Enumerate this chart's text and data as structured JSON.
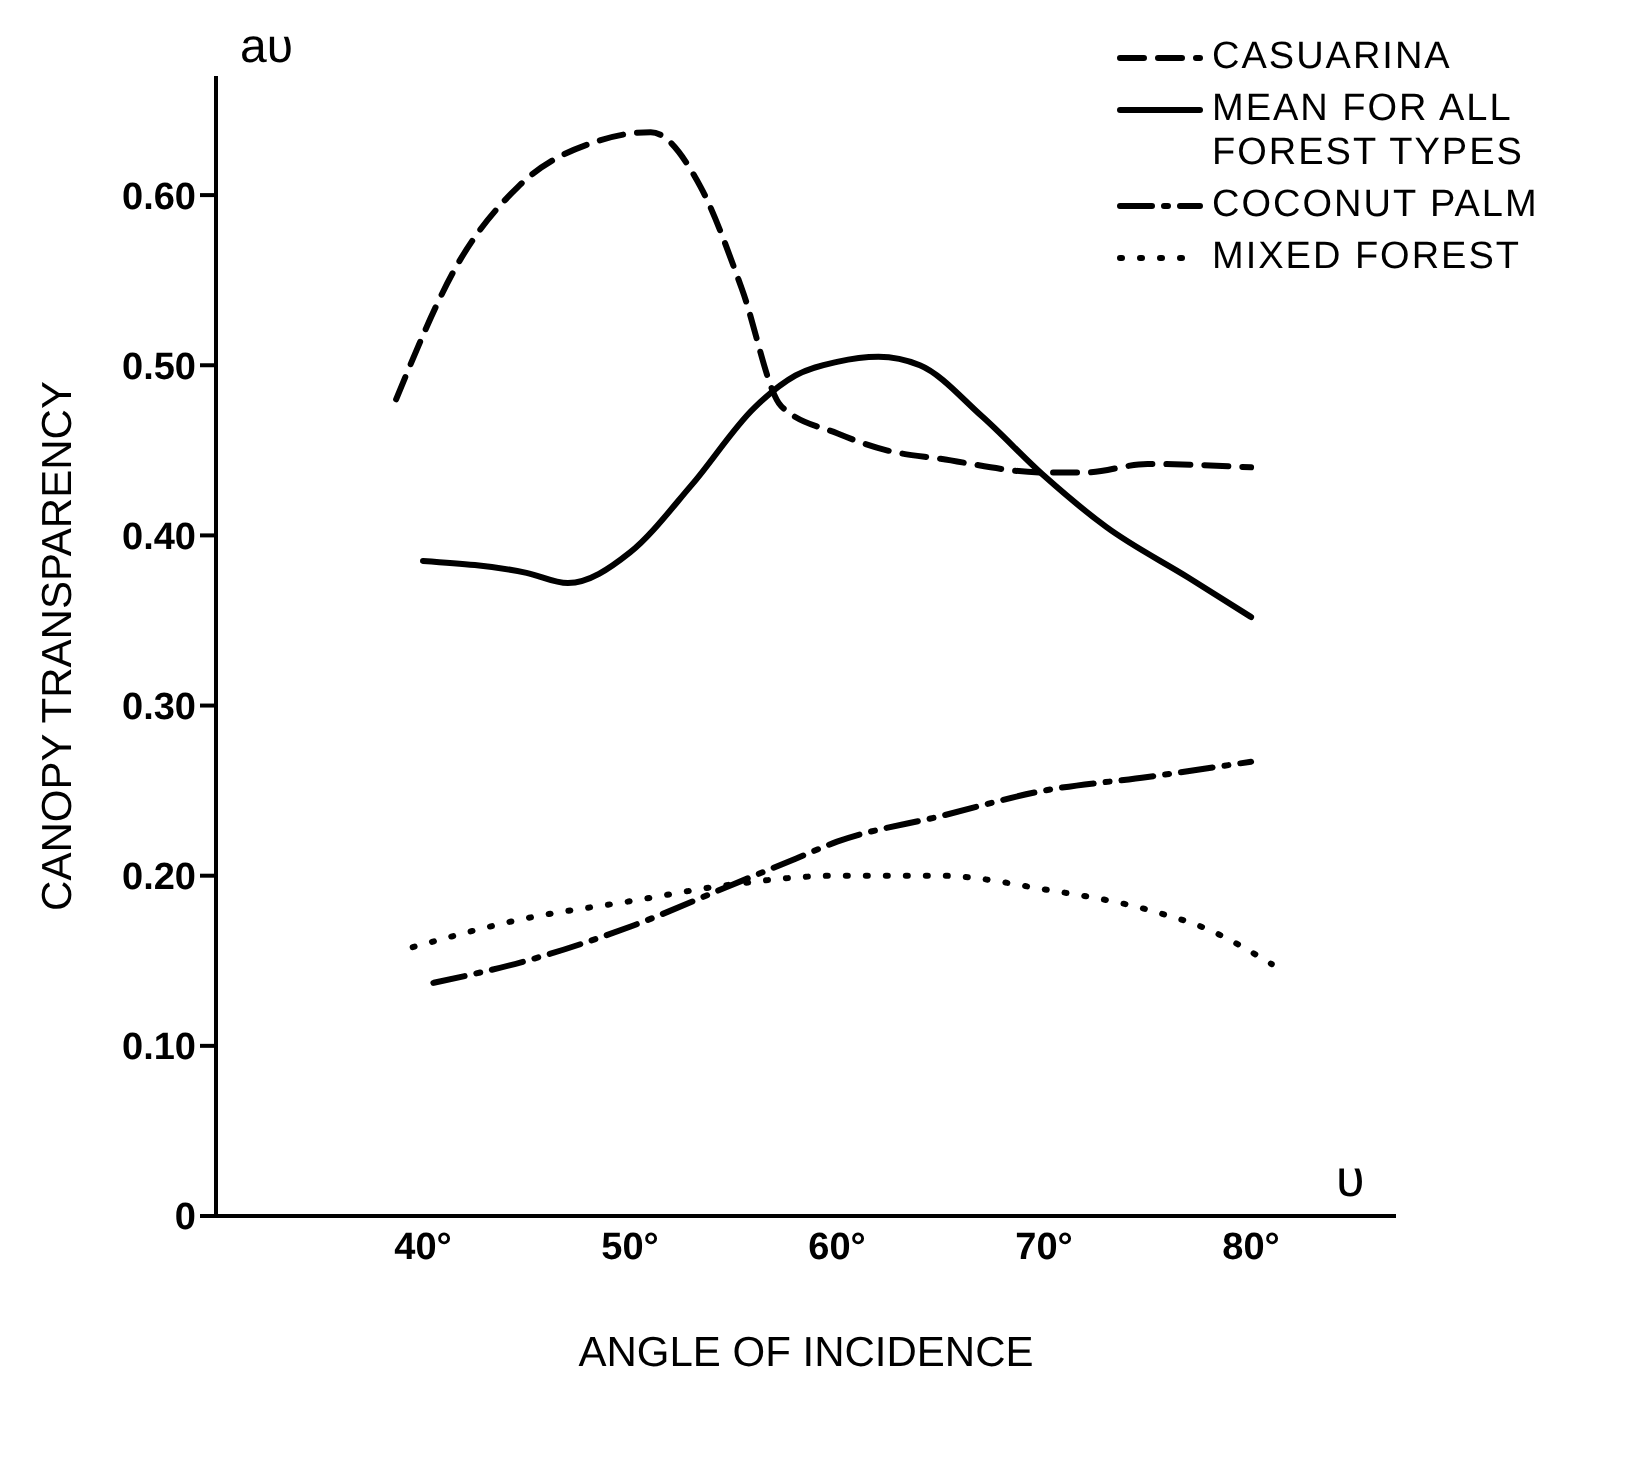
{
  "chart_data": {
    "type": "line",
    "xlabel": "ANGLE OF INCIDENCE",
    "ylabel": "CANOPY TRANSPARENCY",
    "annotations": [
      "aυ",
      "υ"
    ],
    "xlim": [
      30,
      87
    ],
    "xticks": [
      {
        "value": 40,
        "label": "40°"
      },
      {
        "value": 50,
        "label": "50°"
      },
      {
        "value": 60,
        "label": "60°"
      },
      {
        "value": 70,
        "label": "70°"
      },
      {
        "value": 80,
        "label": "80°"
      }
    ],
    "ylim": [
      0,
      0.67
    ],
    "yticks": [
      {
        "value": 0,
        "label": "0"
      },
      {
        "value": 0.1,
        "label": "0.10"
      },
      {
        "value": 0.2,
        "label": "0.20"
      },
      {
        "value": 0.3,
        "label": "0.30"
      },
      {
        "value": 0.4,
        "label": "0.40"
      },
      {
        "value": 0.5,
        "label": "0.50"
      },
      {
        "value": 0.6,
        "label": "0.60"
      }
    ],
    "grid": false,
    "legend": "top right",
    "marker": "none",
    "series": [
      {
        "name": "CASUARINA",
        "color": "#000000",
        "line_style": "dashed",
        "x": [
          38.7,
          41.7,
          44.6,
          48.5,
          51,
          53.4,
          55.4,
          57.3,
          60,
          62.4,
          65,
          70,
          72,
          75,
          80
        ],
        "values": [
          0.48,
          0.56,
          0.605,
          0.632,
          0.637,
          0.605,
          0.545,
          0.476,
          0.46,
          0.45,
          0.445,
          0.437,
          0.437,
          0.442,
          0.44
        ]
      },
      {
        "name": "MEAN FOR ALL FOREST TYPES",
        "color": "#000000",
        "line_style": "solid",
        "x": [
          40,
          45,
          47,
          50,
          53,
          56,
          58,
          60,
          62,
          64,
          67,
          70,
          73,
          77,
          80
        ],
        "values": [
          0.385,
          0.378,
          0.372,
          0.39,
          0.43,
          0.475,
          0.494,
          0.502,
          0.505,
          0.5,
          0.47,
          0.435,
          0.405,
          0.375,
          0.352
        ]
      },
      {
        "name": "COCONUT PALM",
        "color": "#000000",
        "line_style": "dashdot",
        "x": [
          40.5,
          45,
          50,
          55,
          58,
          60,
          65,
          70,
          75,
          80
        ],
        "values": [
          0.137,
          0.15,
          0.17,
          0.195,
          0.21,
          0.22,
          0.235,
          0.25,
          0.258,
          0.267
        ]
      },
      {
        "name": "MIXED FOREST",
        "color": "#000000",
        "line_style": "dotted",
        "x": [
          39.5,
          45,
          50,
          55,
          60,
          65,
          70,
          75,
          78,
          81
        ],
        "values": [
          0.158,
          0.175,
          0.185,
          0.195,
          0.2,
          0.2,
          0.192,
          0.18,
          0.168,
          0.148
        ]
      }
    ]
  }
}
